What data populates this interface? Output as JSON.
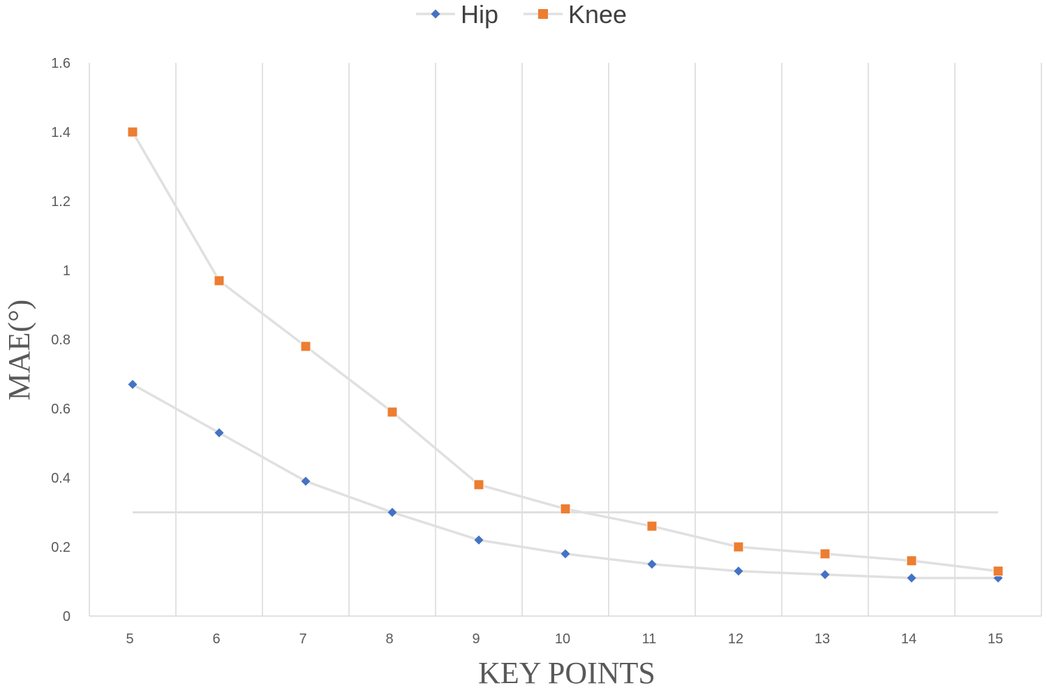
{
  "chart_data": {
    "type": "line",
    "title": "",
    "xlabel": "KEY POINTS",
    "ylabel": "MAE(°)",
    "x": [
      5,
      6,
      7,
      8,
      9,
      10,
      11,
      12,
      13,
      14,
      15
    ],
    "ylim": [
      0,
      1.6
    ],
    "yticks": [
      0,
      0.2,
      0.4,
      0.6,
      0.8,
      1,
      1.2,
      1.4,
      1.6
    ],
    "ytick_labels": [
      "0",
      "0.2",
      "0.4",
      "0.6",
      "0.8",
      "1",
      "1.2",
      "1.4",
      "1.6"
    ],
    "grid": "vertical",
    "legend_position": "top-center",
    "series": [
      {
        "name": "Hip",
        "marker": "diamond",
        "marker_color": "#4472C4",
        "line_color": "#E0E0E0",
        "values": [
          0.67,
          0.53,
          0.39,
          0.3,
          0.22,
          0.18,
          0.15,
          0.13,
          0.12,
          0.11,
          0.11
        ]
      },
      {
        "name": "Knee",
        "marker": "square",
        "marker_color": "#ED7D31",
        "line_color": "#E0E0E0",
        "values": [
          1.4,
          0.97,
          0.78,
          0.59,
          0.38,
          0.31,
          0.26,
          0.2,
          0.18,
          0.16,
          0.13
        ]
      }
    ],
    "reference_line": {
      "y": 0.3,
      "color": "#E0E0E0"
    }
  }
}
